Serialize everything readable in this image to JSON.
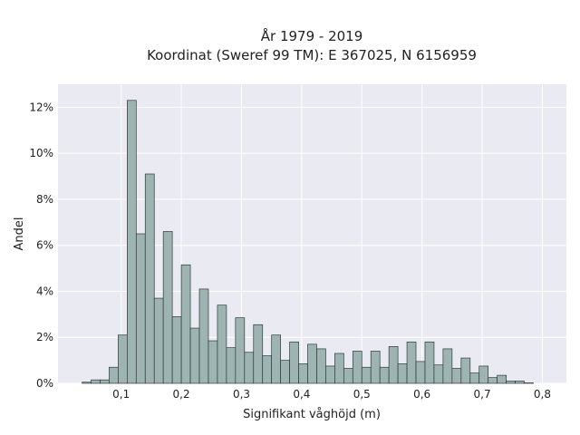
{
  "chart_data": {
    "type": "bar",
    "subtype": "histogram",
    "title_lines": [
      "År 1979 - 2019",
      "Koordinat (Sweref 99 TM): E 367025, N 6156959"
    ],
    "xlabel": "Signifikant våghöjd (m)",
    "ylabel": "Andel",
    "xlim": [
      -0.005,
      0.84
    ],
    "ylim": [
      0,
      0.13
    ],
    "x_ticks": [
      0.1,
      0.2,
      0.3,
      0.4,
      0.5,
      0.6,
      0.7,
      0.8
    ],
    "x_tick_labels": [
      "0,1",
      "0,2",
      "0,3",
      "0,4",
      "0,5",
      "0,6",
      "0,7",
      "0,8"
    ],
    "y_ticks": [
      0,
      0.02,
      0.04,
      0.06,
      0.08,
      0.1,
      0.12
    ],
    "y_tick_labels": [
      "0%",
      "2%",
      "4%",
      "6%",
      "8%",
      "10%",
      "12%"
    ],
    "grid": true,
    "legend": "none",
    "bin_width": 0.015,
    "bin_starts": [
      0.035,
      0.05,
      0.065,
      0.08,
      0.095,
      0.11,
      0.125,
      0.14,
      0.155,
      0.17,
      0.185,
      0.2,
      0.215,
      0.23,
      0.245,
      0.26,
      0.275,
      0.29,
      0.305,
      0.32,
      0.335,
      0.35,
      0.365,
      0.38,
      0.395,
      0.41,
      0.425,
      0.44,
      0.455,
      0.47,
      0.485,
      0.5,
      0.515,
      0.53,
      0.545,
      0.56,
      0.575,
      0.59,
      0.605,
      0.62,
      0.635,
      0.65,
      0.665,
      0.68,
      0.695,
      0.71,
      0.725,
      0.74,
      0.755,
      0.77
    ],
    "values": [
      0.0005,
      0.0015,
      0.0015,
      0.007,
      0.021,
      0.123,
      0.065,
      0.091,
      0.037,
      0.066,
      0.029,
      0.0515,
      0.024,
      0.041,
      0.0185,
      0.034,
      0.0155,
      0.0285,
      0.0135,
      0.0255,
      0.012,
      0.021,
      0.01,
      0.018,
      0.0085,
      0.017,
      0.015,
      0.0075,
      0.013,
      0.0065,
      0.014,
      0.007,
      0.014,
      0.007,
      0.016,
      0.0085,
      0.018,
      0.0095,
      0.018,
      0.008,
      0.015,
      0.0065,
      0.011,
      0.0045,
      0.0075,
      0.0025,
      0.0035,
      0.001,
      0.001,
      0.0002
    ],
    "colors": {
      "bar_fill": "#9db4b3",
      "bar_edge": "#2e3a39",
      "plot_bg": "#eaeaf2",
      "grid": "#ffffff"
    }
  }
}
